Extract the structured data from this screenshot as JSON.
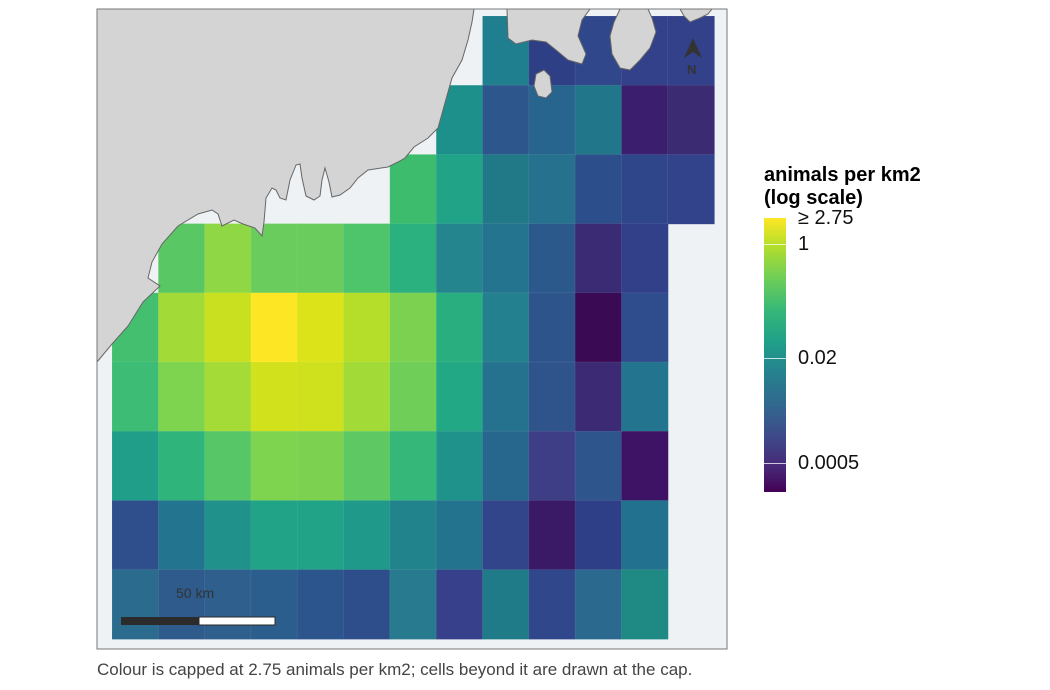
{
  "map": {
    "grid": {
      "columns": 13,
      "rows": 9,
      "cells": [
        [
          "",
          "",
          "",
          "",
          "",
          "",
          "",
          "",
          "#1f7f8e",
          "#2f3f86",
          "#30478b",
          "#33418a",
          "#33418a"
        ],
        [
          "",
          "",
          "",
          "",
          "",
          "",
          "",
          "#1d908b",
          "#2d568c",
          "#27648e",
          "#217689",
          "#3b1f6e",
          "#3a2b73"
        ],
        [
          "",
          "",
          "",
          "",
          "",
          "",
          "#3ebc6e",
          "#20a386",
          "#217988",
          "#25718e",
          "#2c4f8c",
          "#30468b",
          "#33438b"
        ],
        [
          "",
          "#59c864",
          "#8fd744",
          "#6acc5c",
          "#6acc5c",
          "#4ec56a",
          "#2bb07f",
          "#24858e",
          "#25748f",
          "#2b598c",
          "#3a2b74",
          "#32408a"
        ],
        [
          "#44bf70",
          "#a2da37",
          "#c8e020",
          "#fde725",
          "#dce319",
          "#b5de2b",
          "#7cd250",
          "#29af7f",
          "#23808e",
          "#2e548c",
          "#3b0a55",
          "#2f4d8c"
        ],
        [
          "#3cbc74",
          "#7ed34f",
          "#a5db36",
          "#d1e11c",
          "#cfe11c",
          "#a2da37",
          "#6ece58",
          "#22a884",
          "#25728e",
          "#2f548c",
          "#3c2a74",
          "#22748f"
        ],
        [
          "#219e89",
          "#2fb47c",
          "#56c667",
          "#7ed34f",
          "#7cd250",
          "#5ec962",
          "#35b779",
          "#1f938b",
          "#27678e",
          "#3d3e86",
          "#2f558d",
          "#3e1264"
        ],
        [
          "#2e4f8c",
          "#23748f",
          "#21918c",
          "#20a386",
          "#20a386",
          "#1f9a8a",
          "#21848d",
          "#24738e",
          "#32458a",
          "#3a1a66",
          "#2f3f87",
          "#22718e"
        ],
        [
          "#2b6c8e",
          "#2e5a8c",
          "#2e5f8d",
          "#2b5d8d",
          "#2b558c",
          "#2e4e8b",
          "#287b8e",
          "#37408a",
          "#1f7b87",
          "#30478b",
          "#2b6a8e",
          "#1f8a84"
        ]
      ]
    },
    "scale_bar": {
      "label": "50 km"
    },
    "north_arrow": {
      "label": "N"
    }
  },
  "legend": {
    "title_line1": "animals per km2",
    "title_line2": "(log scale)",
    "breaks": [
      {
        "label": "≥ 2.75",
        "position": 0.0
      },
      {
        "label": "1",
        "position": 0.095
      },
      {
        "label": "0.02",
        "position": 0.51
      },
      {
        "label": "0.0005",
        "position": 0.895
      }
    ],
    "colors": {
      "high": "#fde725",
      "low": "#440154",
      "land": "#d4d4d4",
      "sea": "#eef2f5"
    }
  },
  "caption": "Colour is capped at 2.75 animals per km2; cells beyond it are drawn at the cap."
}
